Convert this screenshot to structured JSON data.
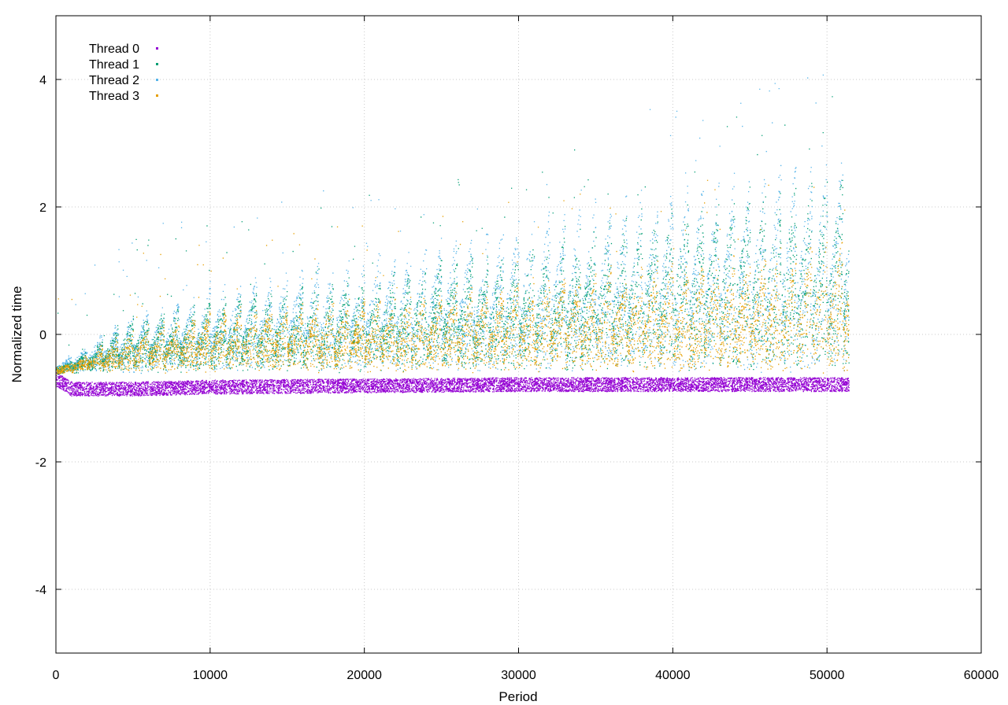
{
  "chart_data": {
    "type": "scatter",
    "title": "",
    "xlabel": "Period",
    "ylabel": "Normalized time",
    "xlim": [
      0,
      60000
    ],
    "ylim": [
      -5,
      5
    ],
    "x_ticks": [
      0,
      10000,
      20000,
      30000,
      40000,
      50000,
      60000
    ],
    "y_ticks": [
      -4,
      -2,
      0,
      2,
      4
    ],
    "grid": true,
    "legend_position": "top-left",
    "x_data_range": [
      0,
      51400
    ],
    "oscillation_period": 1000,
    "series": [
      {
        "name": "Thread 0",
        "color": "#9400d3",
        "shape": "dense band",
        "points": [
          [
            0,
            -0.7
          ],
          [
            1000,
            -0.85
          ],
          [
            5000,
            -0.85
          ],
          [
            10000,
            -0.82
          ],
          [
            20000,
            -0.8
          ],
          [
            30000,
            -0.78
          ],
          [
            40000,
            -0.78
          ],
          [
            51400,
            -0.78
          ]
        ]
      },
      {
        "name": "Thread 1",
        "color": "#009e73",
        "shape": "sawtooth envelope",
        "points": [
          [
            0,
            -0.6
          ],
          [
            5000,
            0.3
          ],
          [
            10000,
            0.6
          ],
          [
            20000,
            1.0
          ],
          [
            30000,
            1.5
          ],
          [
            40000,
            2.2
          ],
          [
            51400,
            2.7
          ]
        ]
      },
      {
        "name": "Thread 2",
        "color": "#56b4e9",
        "shape": "sawtooth envelope",
        "points": [
          [
            0,
            -0.5
          ],
          [
            5000,
            0.4
          ],
          [
            10000,
            0.8
          ],
          [
            20000,
            1.3
          ],
          [
            30000,
            1.9
          ],
          [
            40000,
            2.5
          ],
          [
            51400,
            3.0
          ]
        ]
      },
      {
        "name": "Thread 3",
        "color": "#e69f00",
        "shape": "sawtooth envelope",
        "points": [
          [
            0,
            -0.6
          ],
          [
            5000,
            0.1
          ],
          [
            10000,
            0.4
          ],
          [
            20000,
            0.6
          ],
          [
            30000,
            0.9
          ],
          [
            40000,
            1.2
          ],
          [
            51400,
            1.6
          ]
        ]
      }
    ]
  }
}
